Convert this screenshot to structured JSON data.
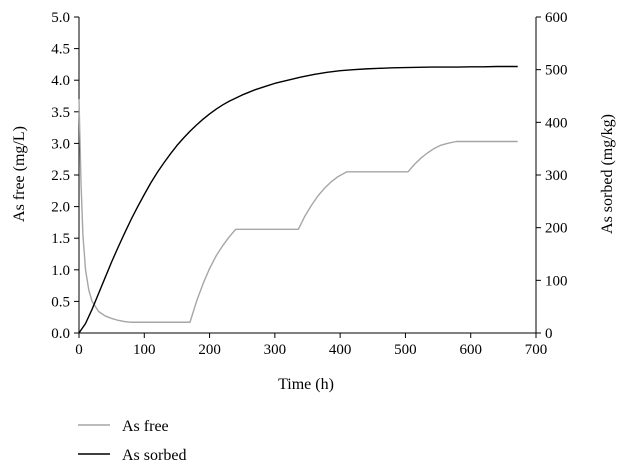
{
  "chart_data": {
    "type": "line",
    "title": "",
    "xlabel": "Time (h)",
    "ylabel_left": "As free (mg/L)",
    "ylabel_right": "As sorbed (mg/kg)",
    "xlim": [
      0,
      700
    ],
    "ylim_left": [
      0,
      5.0
    ],
    "ylim_right": [
      0,
      600
    ],
    "x_ticks": [
      "0",
      "100",
      "200",
      "300",
      "400",
      "500",
      "600",
      "700"
    ],
    "y_left_ticks": [
      "0.0",
      "0.5",
      "1.0",
      "1.5",
      "2.0",
      "2.5",
      "3.0",
      "3.5",
      "4.0",
      "4.5",
      "5.0"
    ],
    "y_right_ticks": [
      "0",
      "100",
      "200",
      "300",
      "400",
      "500",
      "600"
    ],
    "grid": false,
    "legend_position": "bottom-left",
    "series": [
      {
        "name": "As free",
        "axis": "left",
        "color": "#a6a6a6",
        "x": [
          0,
          3,
          6,
          10,
          15,
          20,
          30,
          40,
          50,
          60,
          70,
          80,
          100,
          120,
          140,
          160,
          170,
          180,
          190,
          200,
          210,
          220,
          230,
          240,
          260,
          280,
          300,
          320,
          336,
          346,
          356,
          366,
          376,
          386,
          396,
          410,
          430,
          450,
          470,
          490,
          504,
          514,
          524,
          534,
          544,
          554,
          564,
          578,
          600,
          620,
          640,
          660,
          672
        ],
        "y": [
          3.7,
          2.4,
          1.55,
          1.0,
          0.68,
          0.5,
          0.34,
          0.27,
          0.23,
          0.2,
          0.18,
          0.17,
          0.17,
          0.17,
          0.17,
          0.17,
          0.17,
          0.5,
          0.78,
          1.02,
          1.22,
          1.38,
          1.52,
          1.64,
          1.64,
          1.64,
          1.64,
          1.64,
          1.64,
          1.85,
          2.02,
          2.17,
          2.29,
          2.39,
          2.47,
          2.55,
          2.55,
          2.55,
          2.55,
          2.55,
          2.55,
          2.67,
          2.77,
          2.85,
          2.92,
          2.97,
          3.0,
          3.03,
          3.03,
          3.03,
          3.03,
          3.03,
          3.03
        ]
      },
      {
        "name": "As sorbed",
        "axis": "right",
        "color": "#000000",
        "x": [
          0,
          10,
          20,
          30,
          40,
          50,
          60,
          70,
          80,
          90,
          100,
          110,
          120,
          130,
          140,
          150,
          160,
          170,
          180,
          190,
          200,
          210,
          220,
          230,
          240,
          250,
          260,
          270,
          280,
          290,
          300,
          320,
          340,
          360,
          380,
          400,
          420,
          440,
          460,
          480,
          500,
          520,
          540,
          560,
          580,
          600,
          620,
          640,
          660,
          672
        ],
        "y": [
          0,
          18,
          45,
          75,
          105,
          135,
          163,
          190,
          216,
          240,
          263,
          285,
          305,
          323,
          340,
          356,
          370,
          383,
          395,
          406,
          416,
          425,
          433,
          440,
          446,
          452,
          457,
          462,
          466,
          470,
          474,
          480,
          486,
          491,
          495,
          498,
          500,
          501.5,
          502.5,
          503.5,
          504,
          504.5,
          505,
          505,
          505,
          505.5,
          505.5,
          506,
          506,
          506
        ]
      }
    ]
  }
}
